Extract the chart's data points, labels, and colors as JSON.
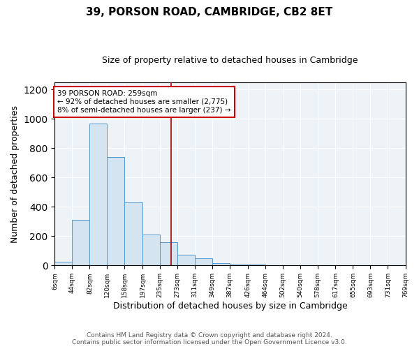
{
  "title1": "39, PORSON ROAD, CAMBRIDGE, CB2 8ET",
  "title2": "Size of property relative to detached houses in Cambridge",
  "xlabel": "Distribution of detached houses by size in Cambridge",
  "ylabel": "Number of detached properties",
  "bin_edges": [
    6,
    44,
    82,
    120,
    158,
    197,
    235,
    273,
    311,
    349,
    387,
    426,
    464,
    502,
    540,
    578,
    617,
    655,
    693,
    731,
    769
  ],
  "bar_heights": [
    25,
    310,
    970,
    740,
    430,
    210,
    160,
    75,
    50,
    15,
    8,
    5,
    3,
    2,
    1,
    0,
    0,
    0,
    0,
    0
  ],
  "bar_color": "#d4e4f0",
  "bar_edge_color": "#5599cc",
  "vline_x": 259,
  "vline_color": "#aa0000",
  "annotation_line1": "39 PORSON ROAD: 259sqm",
  "annotation_line2": "← 92% of detached houses are smaller (2,775)",
  "annotation_line3": "8% of semi-detached houses are larger (237) →",
  "annotation_box_color": "#ffffff",
  "annotation_box_edge": "#cc0000",
  "ylim": [
    0,
    1250
  ],
  "yticks": [
    0,
    200,
    400,
    600,
    800,
    1000,
    1200
  ],
  "footer_text": "Contains HM Land Registry data © Crown copyright and database right 2024.\nContains public sector information licensed under the Open Government Licence v3.0.",
  "bg_color": "#ffffff",
  "plot_bg_color": "#eef3f8",
  "grid_color": "#ffffff",
  "title1_fontsize": 11,
  "title2_fontsize": 9,
  "ylabel_fontsize": 9,
  "xlabel_fontsize": 9
}
